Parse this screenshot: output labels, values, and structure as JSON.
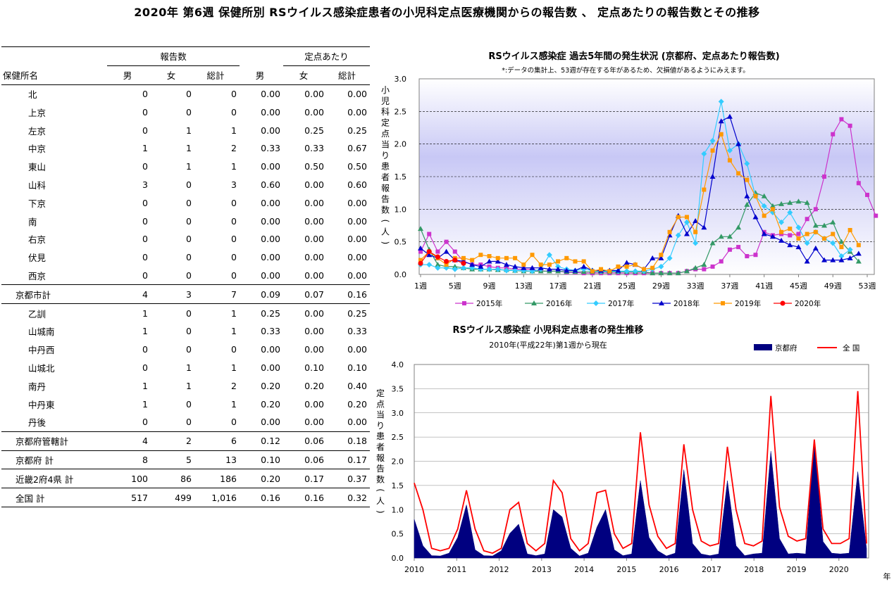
{
  "page_title": "2020年 第6週 保健所別 RSウイルス感染症患者の小児科定点医療機関からの報告数 、 定点あたりの報告数とその推移",
  "table": {
    "group_headers": [
      "報告数",
      "定点あたり"
    ],
    "name_header": "保健所名",
    "sub_headers": [
      "男",
      "女",
      "総計",
      "男",
      "女",
      "総計"
    ],
    "rows": [
      {
        "name": "北",
        "kind": "item",
        "vals": [
          "0",
          "0",
          "0",
          "0.00",
          "0.00",
          "0.00"
        ]
      },
      {
        "name": "上京",
        "kind": "item",
        "vals": [
          "0",
          "0",
          "0",
          "0.00",
          "0.00",
          "0.00"
        ]
      },
      {
        "name": "左京",
        "kind": "item",
        "vals": [
          "0",
          "1",
          "1",
          "0.00",
          "0.25",
          "0.25"
        ]
      },
      {
        "name": "中京",
        "kind": "item",
        "vals": [
          "1",
          "1",
          "2",
          "0.33",
          "0.33",
          "0.67"
        ]
      },
      {
        "name": "東山",
        "kind": "item",
        "vals": [
          "0",
          "1",
          "1",
          "0.00",
          "0.50",
          "0.50"
        ]
      },
      {
        "name": "山科",
        "kind": "item",
        "vals": [
          "3",
          "0",
          "3",
          "0.60",
          "0.00",
          "0.60"
        ]
      },
      {
        "name": "下京",
        "kind": "item",
        "vals": [
          "0",
          "0",
          "0",
          "0.00",
          "0.00",
          "0.00"
        ]
      },
      {
        "name": "南",
        "kind": "item",
        "vals": [
          "0",
          "0",
          "0",
          "0.00",
          "0.00",
          "0.00"
        ]
      },
      {
        "name": "右京",
        "kind": "item",
        "vals": [
          "0",
          "0",
          "0",
          "0.00",
          "0.00",
          "0.00"
        ]
      },
      {
        "name": "伏見",
        "kind": "item",
        "vals": [
          "0",
          "0",
          "0",
          "0.00",
          "0.00",
          "0.00"
        ]
      },
      {
        "name": "西京",
        "kind": "item",
        "vals": [
          "0",
          "0",
          "0",
          "0.00",
          "0.00",
          "0.00"
        ]
      },
      {
        "name": "京都市計",
        "kind": "sum",
        "vals": [
          "4",
          "3",
          "7",
          "0.09",
          "0.07",
          "0.16"
        ]
      },
      {
        "name": "乙訓",
        "kind": "item",
        "vals": [
          "1",
          "0",
          "1",
          "0.25",
          "0.00",
          "0.25"
        ]
      },
      {
        "name": "山城南",
        "kind": "item",
        "vals": [
          "1",
          "0",
          "1",
          "0.33",
          "0.00",
          "0.33"
        ]
      },
      {
        "name": "中丹西",
        "kind": "item",
        "vals": [
          "0",
          "0",
          "0",
          "0.00",
          "0.00",
          "0.00"
        ]
      },
      {
        "name": "山城北",
        "kind": "item",
        "vals": [
          "0",
          "1",
          "1",
          "0.00",
          "0.10",
          "0.10"
        ]
      },
      {
        "name": "南丹",
        "kind": "item",
        "vals": [
          "1",
          "1",
          "2",
          "0.20",
          "0.20",
          "0.40"
        ]
      },
      {
        "name": "中丹東",
        "kind": "item",
        "vals": [
          "1",
          "0",
          "1",
          "0.20",
          "0.00",
          "0.20"
        ]
      },
      {
        "name": "丹後",
        "kind": "item",
        "vals": [
          "0",
          "0",
          "0",
          "0.00",
          "0.00",
          "0.00"
        ]
      },
      {
        "name": "京都府管轄計",
        "kind": "sum",
        "vals": [
          "4",
          "2",
          "6",
          "0.12",
          "0.06",
          "0.18"
        ]
      },
      {
        "name": "京都府 計",
        "kind": "sum",
        "vals": [
          "8",
          "5",
          "13",
          "0.10",
          "0.06",
          "0.17"
        ]
      },
      {
        "name": "近畿2府4県 計",
        "kind": "sum",
        "vals": [
          "100",
          "86",
          "186",
          "0.20",
          "0.17",
          "0.37"
        ]
      },
      {
        "name": "全国 計",
        "kind": "sum",
        "vals": [
          "517",
          "499",
          "1,016",
          "0.16",
          "0.16",
          "0.32"
        ]
      }
    ]
  },
  "colors": {
    "y2015": "#CC33CC",
    "y2016": "#339966",
    "y2017": "#33CCFF",
    "y2018": "#0000CC",
    "y2019": "#FF9900",
    "y2020": "#FF0000",
    "kyoto_fill": "#000080",
    "national_line": "#FF0000"
  },
  "chart_data": [
    {
      "type": "line",
      "title": "RSウイルス感染症 過去5年間の発生状況 (京都府、定点あたり報告数)",
      "note": "*:データの集計上、53週が存在する年があるため、欠損値があるようにみえます。",
      "ylabel": "小児科定点当り患者報告数(人)",
      "ylim": [
        0,
        3.0
      ],
      "yticks": [
        "0.0",
        "0.5",
        "1.0",
        "1.5",
        "2.0",
        "2.5",
        "3.0"
      ],
      "xticks": [
        {
          "w": 1,
          "label": "1週"
        },
        {
          "w": 5,
          "label": "5週"
        },
        {
          "w": 9,
          "label": "9週"
        },
        {
          "w": 13,
          "label": "13週"
        },
        {
          "w": 17,
          "label": "17週"
        },
        {
          "w": 21,
          "label": "21週"
        },
        {
          "w": 25,
          "label": "25週"
        },
        {
          "w": 29,
          "label": "29週"
        },
        {
          "w": 33,
          "label": "33週"
        },
        {
          "w": 37,
          "label": "37週"
        },
        {
          "w": 41,
          "label": "41週"
        },
        {
          "w": 45,
          "label": "45週"
        },
        {
          "w": 49,
          "label": "49週"
        },
        {
          "w": 53,
          "label": "53週"
        }
      ],
      "series": [
        {
          "name": "2015年",
          "marker": "square",
          "values": [
            0.35,
            0.62,
            0.35,
            0.5,
            0.35,
            0.2,
            0.15,
            0.15,
            0.12,
            0.1,
            0.1,
            0.08,
            0.08,
            0.08,
            0.05,
            0.05,
            0.05,
            0.03,
            0.03,
            0.02,
            0.02,
            0.02,
            0.02,
            0.02,
            0.02,
            0.02,
            0.02,
            0.02,
            0.02,
            0.02,
            0.02,
            0.05,
            0.08,
            0.08,
            0.12,
            0.2,
            0.38,
            0.42,
            0.28,
            0.3,
            0.65,
            0.6,
            0.62,
            0.6,
            0.62,
            0.85,
            1.0,
            1.5,
            2.15,
            2.38,
            2.28,
            1.4,
            1.22,
            0.9
          ]
        },
        {
          "name": "2016年",
          "marker": "triangle",
          "values": [
            0.7,
            0.38,
            0.15,
            0.12,
            0.12,
            0.1,
            0.08,
            0.08,
            0.08,
            0.07,
            0.07,
            0.06,
            0.05,
            0.05,
            0.05,
            0.05,
            0.05,
            0.04,
            0.04,
            0.04,
            0.04,
            0.04,
            0.04,
            0.04,
            0.04,
            0.04,
            0.04,
            0.02,
            0.02,
            0.02,
            0.02,
            0.05,
            0.1,
            0.15,
            0.48,
            0.58,
            0.58,
            0.72,
            1.07,
            1.25,
            1.2,
            1.05,
            1.08,
            1.1,
            1.12,
            1.1,
            0.75,
            0.75,
            0.8,
            0.5,
            0.35,
            0.2
          ]
        },
        {
          "name": "2017年",
          "marker": "diamond",
          "values": [
            0.15,
            0.15,
            0.1,
            0.1,
            0.08,
            0.1,
            0.1,
            0.08,
            0.08,
            0.08,
            0.06,
            0.06,
            0.06,
            0.05,
            0.08,
            0.3,
            0.12,
            0.08,
            0.06,
            0.08,
            0.06,
            0.05,
            0.05,
            0.05,
            0.05,
            0.05,
            0.05,
            0.08,
            0.12,
            0.25,
            0.6,
            0.8,
            0.48,
            1.85,
            2.05,
            2.65,
            1.9,
            2.0,
            1.7,
            1.2,
            1.05,
            0.95,
            0.8,
            0.95,
            0.72,
            0.48,
            0.65,
            0.55,
            0.48,
            0.28,
            0.38
          ]
        },
        {
          "name": "2018年",
          "marker": "triangle",
          "values": [
            0.4,
            0.3,
            0.25,
            0.35,
            0.22,
            0.2,
            0.15,
            0.12,
            0.2,
            0.2,
            0.15,
            0.12,
            0.1,
            0.1,
            0.1,
            0.08,
            0.08,
            0.06,
            0.06,
            0.12,
            0.06,
            0.06,
            0.06,
            0.06,
            0.18,
            0.15,
            0.08,
            0.25,
            0.25,
            0.6,
            0.9,
            0.62,
            0.82,
            0.72,
            1.5,
            2.35,
            2.42,
            2.0,
            1.2,
            0.88,
            0.62,
            0.58,
            0.52,
            0.45,
            0.42,
            0.2,
            0.4,
            0.22,
            0.22,
            0.22,
            0.25,
            0.32
          ]
        },
        {
          "name": "2019年",
          "marker": "square",
          "values": [
            0.22,
            0.35,
            0.25,
            0.15,
            0.25,
            0.25,
            0.22,
            0.3,
            0.28,
            0.25,
            0.25,
            0.25,
            0.15,
            0.3,
            0.15,
            0.15,
            0.2,
            0.25,
            0.2,
            0.2,
            0.05,
            0.08,
            0.05,
            0.12,
            0.12,
            0.15,
            0.08,
            0.1,
            0.3,
            0.65,
            0.88,
            0.88,
            0.65,
            1.3,
            1.9,
            2.15,
            1.75,
            1.55,
            1.45,
            1.2,
            0.9,
            1.0,
            0.65,
            0.7,
            0.55,
            0.62,
            0.65,
            0.55,
            0.62,
            0.42,
            0.68,
            0.45
          ]
        },
        {
          "name": "2020年",
          "marker": "circle",
          "values": [
            0.17,
            0.35,
            0.27,
            0.2,
            0.22,
            0.17
          ]
        }
      ]
    },
    {
      "type": "area",
      "title": "RSウイルス感染症 小児科定点患者の発生推移",
      "subtitle": "2010年(平成22年)第1週から現在",
      "ylabel": "定点当り患者報告数(人)",
      "xlabel_unit": "年",
      "ylim": [
        0,
        4.0
      ],
      "yticks": [
        "0.0",
        "0.5",
        "1.0",
        "1.5",
        "2.0",
        "2.5",
        "3.0",
        "3.5",
        "4.0"
      ],
      "xticks": [
        "2010",
        "2011",
        "2012",
        "2013",
        "2014",
        "2015",
        "2016",
        "2017",
        "2018",
        "2019",
        "2020"
      ],
      "series": [
        {
          "name": "京都府",
          "values": [
            0.8,
            0.3,
            0.05,
            0.05,
            0.1,
            0.5,
            1.1,
            0.2,
            0.05,
            0.05,
            0.15,
            0.6,
            0.7,
            0.1,
            0.05,
            0.1,
            1.0,
            1.0,
            0.2,
            0.05,
            0.1,
            0.75,
            1.0,
            0.2,
            0.05,
            0.1,
            1.6,
            0.5,
            0.15,
            0.05,
            0.1,
            2.15,
            0.3,
            0.1,
            0.05,
            0.1,
            1.6,
            0.3,
            0.05,
            0.1,
            0.1,
            2.6,
            0.4,
            0.1,
            0.1,
            0.1,
            2.45,
            0.4,
            0.1,
            0.1,
            0.1,
            2.1,
            0.2
          ]
        },
        {
          "name": "全 国",
          "values": [
            1.55,
            1.0,
            0.2,
            0.15,
            0.2,
            0.6,
            1.4,
            0.6,
            0.15,
            0.1,
            0.2,
            1.0,
            1.15,
            0.3,
            0.15,
            0.3,
            1.6,
            1.35,
            0.4,
            0.15,
            0.3,
            1.35,
            1.4,
            0.5,
            0.2,
            0.3,
            2.6,
            1.1,
            0.45,
            0.2,
            0.3,
            2.35,
            1.0,
            0.35,
            0.25,
            0.3,
            2.3,
            1.0,
            0.3,
            0.25,
            0.35,
            3.35,
            1.05,
            0.45,
            0.35,
            0.4,
            2.45,
            0.6,
            0.3,
            0.3,
            0.4,
            3.45,
            0.3
          ]
        }
      ]
    }
  ]
}
